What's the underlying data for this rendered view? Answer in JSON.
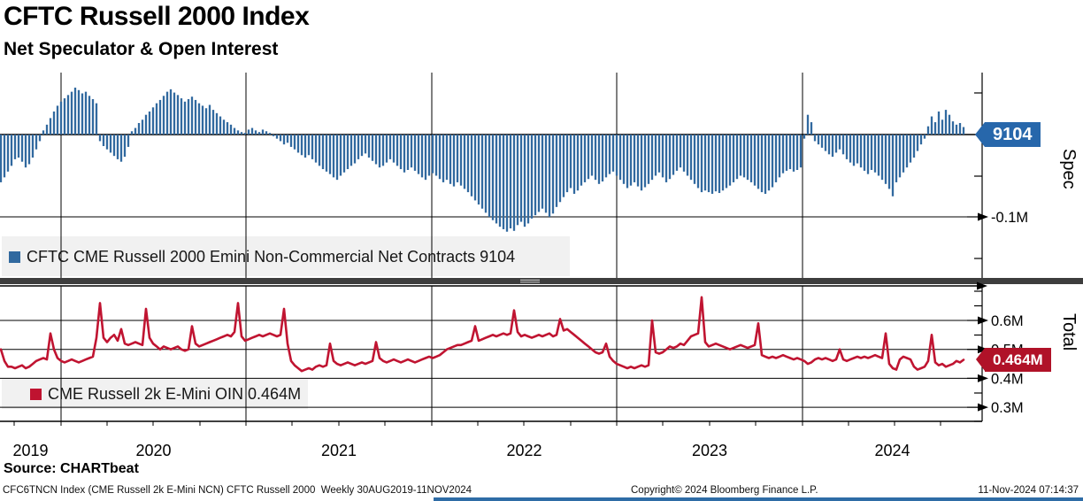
{
  "header": {
    "title": "CFTC Russell 2000 Index",
    "subtitle": "Net Speculator & Open Interest"
  },
  "panels": {
    "spec": {
      "legend": "CFTC CME Russell 2000 Emini Non-Commercial Net Contracts 9104",
      "axis_label": "Spec",
      "tag": "9104"
    },
    "total": {
      "legend": "CME Russell 2k E-Mini OIN 0.464M",
      "axis_label": "Total",
      "tag": "0.464M"
    }
  },
  "footer": {
    "source": "Source: CHARTbeat",
    "left_note": "CFC6TNCN Index (CME Russell 2k E-Mini NCN) CFTC Russell 2000  Weekly 30AUG2019-11NOV2024",
    "copyright": "Copyright© 2024 Bloomberg Finance L.P.",
    "timestamp": "11-Nov-2024 07:14:37"
  },
  "colors": {
    "bar": "#31699f",
    "bar_tag": "#2767ab",
    "line": "#c01431",
    "line_tag": "#b01228",
    "legend_bg": "#f1f1f1",
    "separator": "#3d3d3d",
    "grid": "#000000"
  },
  "chart_data": {
    "type": [
      "bar",
      "line"
    ],
    "frequency": "Weekly",
    "period": "30AUG2019-11NOV2024",
    "x_years": [
      "2019",
      "2020",
      "2021",
      "2022",
      "2023",
      "2024"
    ],
    "spec_panel": {
      "type": "bar",
      "name": "CFTC CME Russell 2000 Emini Non-Commercial Net Contracts",
      "unit": "thousand contracts (net)",
      "last_value": 9104,
      "labeled_ticks": [
        {
          "value_m": -0.1,
          "label": "-0.1M"
        }
      ],
      "zero_line": true,
      "approx_range_k": [
        -125,
        75
      ],
      "values_k": [
        -58,
        -52,
        -45,
        -38,
        -30,
        -28,
        -33,
        -40,
        -36,
        -28,
        -18,
        -8,
        5,
        12,
        20,
        28,
        35,
        40,
        44,
        48,
        52,
        57,
        54,
        50,
        52,
        47,
        43,
        38,
        -8,
        -14,
        -18,
        -22,
        -26,
        -30,
        -33,
        -27,
        -15,
        4,
        8,
        14,
        18,
        24,
        28,
        33,
        38,
        42,
        47,
        52,
        55,
        51,
        48,
        44,
        40,
        43,
        46,
        42,
        38,
        35,
        32,
        36,
        30,
        26,
        22,
        18,
        15,
        12,
        8,
        5,
        3,
        2,
        6,
        8,
        5,
        3,
        6,
        4,
        2,
        -2,
        -5,
        -8,
        -12,
        -10,
        -15,
        -18,
        -22,
        -25,
        -28,
        -25,
        -30,
        -34,
        -38,
        -42,
        -45,
        -48,
        -52,
        -55,
        -50,
        -46,
        -42,
        -38,
        -35,
        -30,
        -26,
        -23,
        -28,
        -32,
        -36,
        -40,
        -38,
        -34,
        -30,
        -34,
        -38,
        -42,
        -46,
        -43,
        -40,
        -44,
        -48,
        -52,
        -55,
        -50,
        -47,
        -50,
        -54,
        -58,
        -55,
        -60,
        -63,
        -58,
        -62,
        -66,
        -70,
        -75,
        -80,
        -85,
        -90,
        -95,
        -100,
        -104,
        -108,
        -112,
        -115,
        -118,
        -114,
        -117,
        -110,
        -106,
        -112,
        -108,
        -102,
        -98,
        -94,
        -90,
        -95,
        -100,
        -96,
        -88,
        -82,
        -76,
        -70,
        -65,
        -72,
        -68,
        -62,
        -58,
        -54,
        -50,
        -55,
        -60,
        -57,
        -52,
        -48,
        -45,
        -50,
        -55,
        -60,
        -65,
        -62,
        -58,
        -63,
        -68,
        -64,
        -60,
        -55,
        -50,
        -46,
        -52,
        -58,
        -54,
        -49,
        -44,
        -40,
        -45,
        -50,
        -55,
        -60,
        -65,
        -70,
        -68,
        -70,
        -72,
        -69,
        -71,
        -68,
        -65,
        -62,
        -58,
        -54,
        -50,
        -52,
        -55,
        -58,
        -62,
        -66,
        -70,
        -72,
        -68,
        -64,
        -58,
        -52,
        -47,
        -44,
        -42,
        -45,
        -43,
        -40,
        -5,
        24,
        15,
        -8,
        -12,
        -16,
        -20,
        -24,
        -27,
        -22,
        -18,
        -24,
        -30,
        -34,
        -38,
        -35,
        -40,
        -44,
        -48,
        -43,
        -46,
        -50,
        -55,
        -60,
        -66,
        -75,
        -58,
        -52,
        -46,
        -40,
        -34,
        -28,
        -20,
        -12,
        -5,
        10,
        22,
        15,
        28,
        18,
        30,
        24,
        16,
        12,
        14,
        9.1
      ]
    },
    "total_panel": {
      "type": "line",
      "name": "CME Russell 2k E-Mini OIN",
      "unit": "million contracts",
      "last_value": 0.464,
      "labeled_ticks": [
        {
          "value_m": 0.6,
          "label": "0.6M"
        },
        {
          "value_m": 0.5,
          "label": "0.5M"
        },
        {
          "value_m": 0.4,
          "label": "0.4M"
        },
        {
          "value_m": 0.3,
          "label": "0.3M"
        }
      ],
      "approx_range_m": [
        0.25,
        0.72
      ],
      "values_m": [
        0.5,
        0.46,
        0.44,
        0.44,
        0.435,
        0.44,
        0.445,
        0.435,
        0.44,
        0.45,
        0.46,
        0.465,
        0.47,
        0.465,
        0.555,
        0.5,
        0.47,
        0.46,
        0.455,
        0.46,
        0.465,
        0.46,
        0.455,
        0.46,
        0.465,
        0.47,
        0.475,
        0.54,
        0.66,
        0.54,
        0.525,
        0.54,
        0.55,
        0.53,
        0.57,
        0.52,
        0.515,
        0.52,
        0.525,
        0.52,
        0.515,
        0.64,
        0.54,
        0.52,
        0.51,
        0.5,
        0.51,
        0.505,
        0.5,
        0.505,
        0.51,
        0.5,
        0.495,
        0.5,
        0.58,
        0.52,
        0.51,
        0.515,
        0.52,
        0.525,
        0.53,
        0.535,
        0.54,
        0.545,
        0.55,
        0.545,
        0.56,
        0.66,
        0.545,
        0.53,
        0.535,
        0.54,
        0.545,
        0.55,
        0.545,
        0.55,
        0.555,
        0.55,
        0.545,
        0.55,
        0.64,
        0.52,
        0.46,
        0.445,
        0.435,
        0.425,
        0.43,
        0.435,
        0.43,
        0.44,
        0.445,
        0.44,
        0.445,
        0.52,
        0.46,
        0.45,
        0.445,
        0.45,
        0.455,
        0.45,
        0.445,
        0.45,
        0.455,
        0.45,
        0.455,
        0.46,
        0.525,
        0.47,
        0.46,
        0.455,
        0.46,
        0.465,
        0.46,
        0.455,
        0.46,
        0.465,
        0.46,
        0.455,
        0.46,
        0.465,
        0.47,
        0.475,
        0.47,
        0.475,
        0.48,
        0.49,
        0.5,
        0.505,
        0.51,
        0.515,
        0.515,
        0.52,
        0.525,
        0.53,
        0.58,
        0.53,
        0.535,
        0.54,
        0.545,
        0.55,
        0.545,
        0.55,
        0.555,
        0.55,
        0.555,
        0.635,
        0.56,
        0.545,
        0.55,
        0.545,
        0.54,
        0.545,
        0.55,
        0.545,
        0.55,
        0.555,
        0.545,
        0.55,
        0.605,
        0.565,
        0.57,
        0.56,
        0.55,
        0.54,
        0.53,
        0.52,
        0.51,
        0.5,
        0.49,
        0.485,
        0.49,
        0.52,
        0.475,
        0.46,
        0.45,
        0.445,
        0.44,
        0.435,
        0.44,
        0.435,
        0.44,
        0.445,
        0.44,
        0.445,
        0.6,
        0.49,
        0.485,
        0.49,
        0.5,
        0.51,
        0.505,
        0.51,
        0.52,
        0.515,
        0.53,
        0.545,
        0.55,
        0.555,
        0.68,
        0.525,
        0.51,
        0.515,
        0.52,
        0.515,
        0.51,
        0.505,
        0.5,
        0.505,
        0.51,
        0.515,
        0.51,
        0.505,
        0.51,
        0.515,
        0.59,
        0.48,
        0.475,
        0.47,
        0.475,
        0.47,
        0.475,
        0.48,
        0.475,
        0.47,
        0.465,
        0.47,
        0.465,
        0.46,
        0.45,
        0.455,
        0.465,
        0.47,
        0.465,
        0.47,
        0.465,
        0.46,
        0.465,
        0.5,
        0.465,
        0.46,
        0.465,
        0.47,
        0.475,
        0.47,
        0.475,
        0.47,
        0.475,
        0.48,
        0.475,
        0.47,
        0.555,
        0.45,
        0.435,
        0.43,
        0.465,
        0.475,
        0.47,
        0.465,
        0.44,
        0.43,
        0.435,
        0.44,
        0.46,
        0.55,
        0.455,
        0.445,
        0.45,
        0.44,
        0.445,
        0.45,
        0.46,
        0.455,
        0.464
      ]
    }
  }
}
